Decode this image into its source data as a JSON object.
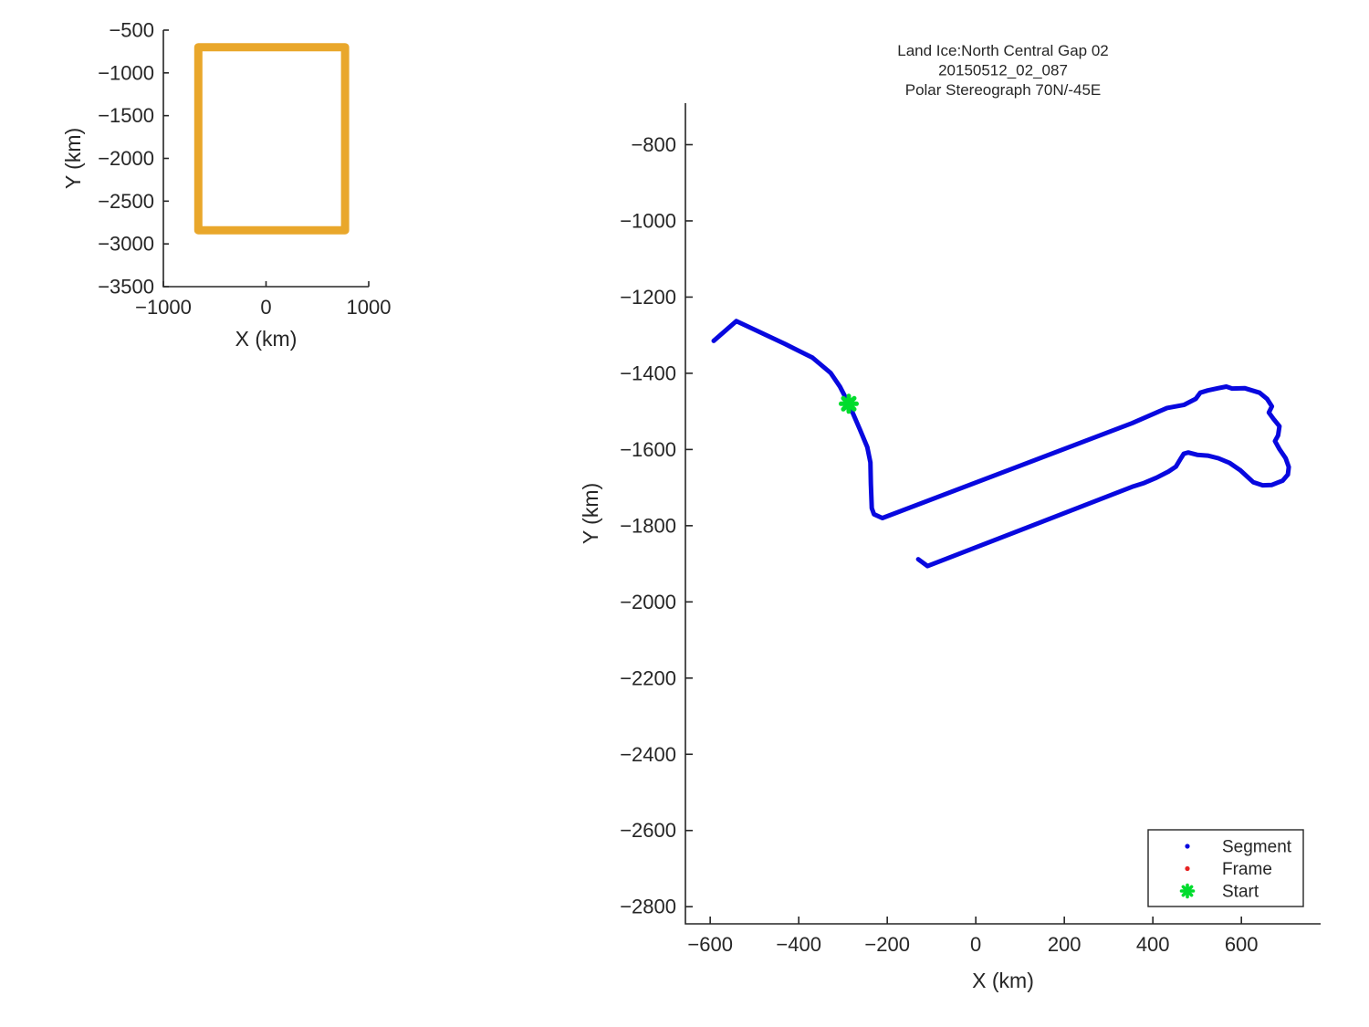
{
  "figure": {
    "background": "#FFFFFF",
    "text_color": "#262626",
    "axis_color": "#262626"
  },
  "chart_data": [
    {
      "id": "overview",
      "type": "line",
      "title": "",
      "xlabel": "X (km)",
      "ylabel": "Y (km)",
      "xlim": [
        -1000,
        1000
      ],
      "ylim": [
        -3500,
        -500
      ],
      "xticks": [
        -1000,
        0,
        1000
      ],
      "yticks": [
        -500,
        -1000,
        -1500,
        -2000,
        -2500,
        -3000,
        -3500
      ],
      "grid": false,
      "legend": null,
      "series": [
        {
          "name": "coverage-box",
          "color": "#E9A72B",
          "line_width": 9,
          "closed": true,
          "points": [
            [
              -660,
              -700
            ],
            [
              770,
              -700
            ],
            [
              770,
              -2840
            ],
            [
              -660,
              -2840
            ]
          ]
        }
      ],
      "markers": []
    },
    {
      "id": "main",
      "type": "line",
      "title_lines": [
        "Land Ice:North Central Gap 02",
        "20150512_02_087",
        "Polar Stereograph 70N/-45E"
      ],
      "xlabel": "X (km)",
      "ylabel": "Y (km)",
      "xlim": [
        -656,
        779
      ],
      "ylim": [
        -2845,
        -691
      ],
      "xticks": [
        -600,
        -400,
        -200,
        0,
        200,
        400,
        600
      ],
      "yticks": [
        -800,
        -1000,
        -1200,
        -1400,
        -1600,
        -1800,
        -2000,
        -2200,
        -2400,
        -2600,
        -2800
      ],
      "grid": false,
      "legend": {
        "position": "bottom-right-inside",
        "items": [
          {
            "label": "Segment",
            "marker": "dot",
            "color": "#0808DF"
          },
          {
            "label": "Frame",
            "marker": "dot",
            "color": "#E62222"
          },
          {
            "label": "Start",
            "marker": "asterisk",
            "color": "#00DC2D"
          }
        ]
      },
      "series": [
        {
          "name": "Segment",
          "color": "#0808DF",
          "line_width": 5,
          "closed": false,
          "points": [
            [
              -592,
              -1315
            ],
            [
              -541,
              -1263
            ],
            [
              -431,
              -1323
            ],
            [
              -369,
              -1359
            ],
            [
              -328,
              -1399
            ],
            [
              -307,
              -1435
            ],
            [
              -287,
              -1480
            ],
            [
              -262,
              -1547
            ],
            [
              -245,
              -1594
            ],
            [
              -238,
              -1634
            ],
            [
              -237,
              -1690
            ],
            [
              -235,
              -1754
            ],
            [
              -230,
              -1770
            ],
            [
              -211,
              -1780
            ],
            [
              353,
              -1531
            ],
            [
              432,
              -1491
            ],
            [
              470,
              -1483
            ],
            [
              497,
              -1467
            ],
            [
              507,
              -1451
            ],
            [
              524,
              -1445
            ],
            [
              548,
              -1439
            ],
            [
              566,
              -1435
            ],
            [
              579,
              -1440
            ],
            [
              607,
              -1439
            ],
            [
              641,
              -1451
            ],
            [
              658,
              -1467
            ],
            [
              669,
              -1487
            ],
            [
              662,
              -1503
            ],
            [
              672,
              -1519
            ],
            [
              686,
              -1539
            ],
            [
              683,
              -1563
            ],
            [
              676,
              -1578
            ],
            [
              686,
              -1599
            ],
            [
              700,
              -1623
            ],
            [
              707,
              -1646
            ],
            [
              705,
              -1666
            ],
            [
              693,
              -1682
            ],
            [
              669,
              -1693
            ],
            [
              648,
              -1694
            ],
            [
              627,
              -1686
            ],
            [
              597,
              -1654
            ],
            [
              573,
              -1635
            ],
            [
              548,
              -1623
            ],
            [
              524,
              -1616
            ],
            [
              500,
              -1614
            ],
            [
              480,
              -1608
            ],
            [
              470,
              -1611
            ],
            [
              462,
              -1626
            ],
            [
              452,
              -1645
            ],
            [
              435,
              -1658
            ],
            [
              408,
              -1674
            ],
            [
              380,
              -1688
            ],
            [
              353,
              -1698
            ],
            [
              -109,
              -1906
            ],
            [
              -130,
              -1888
            ]
          ]
        }
      ],
      "markers": [
        {
          "name": "Start",
          "shape": "asterisk",
          "color": "#00DC2D",
          "x": -287,
          "y": -1480
        }
      ]
    }
  ]
}
